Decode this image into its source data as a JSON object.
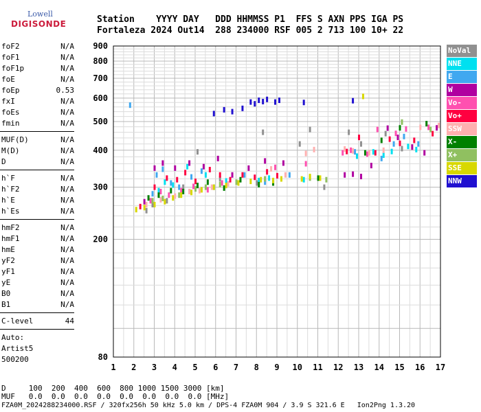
{
  "logo": {
    "top": "Lowell",
    "bottom": "DIGISONDE"
  },
  "header": {
    "row1": "Station    YYYY DAY   DDD HHMMSS P1  FFS S AXN PPS IGA PS",
    "row2": "Fortaleza 2024 Out14  288 234000 RSF 005 2 713 100 10+ 22"
  },
  "params": [
    {
      "name": "foF2",
      "value": "N/A"
    },
    {
      "name": "foF1",
      "value": "N/A"
    },
    {
      "name": "foF1p",
      "value": "N/A"
    },
    {
      "name": "foE",
      "value": "N/A"
    },
    {
      "name": "foEp",
      "value": "0.53"
    },
    {
      "name": "fxI",
      "value": "N/A"
    },
    {
      "name": "foEs",
      "value": "N/A"
    },
    {
      "name": "fmin",
      "value": "N/A"
    },
    {
      "name": "MUF(D)",
      "value": "N/A"
    },
    {
      "name": "M(D)",
      "value": "N/A"
    },
    {
      "name": "D",
      "value": "N/A"
    },
    {
      "name": "h`F",
      "value": "N/A"
    },
    {
      "name": "h`F2",
      "value": "N/A"
    },
    {
      "name": "h`E",
      "value": "N/A"
    },
    {
      "name": "h`Es",
      "value": "N/A"
    },
    {
      "name": "hmF2",
      "value": "N/A"
    },
    {
      "name": "hmF1",
      "value": "N/A"
    },
    {
      "name": "hmE",
      "value": "N/A"
    },
    {
      "name": "yF2",
      "value": "N/A"
    },
    {
      "name": "yF1",
      "value": "N/A"
    },
    {
      "name": "yE",
      "value": "N/A"
    },
    {
      "name": "B0",
      "value": "N/A"
    },
    {
      "name": "B1",
      "value": "N/A"
    },
    {
      "name": "C-level",
      "value": "44"
    }
  ],
  "auto": {
    "line1": "Auto:",
    "line2": "Artist5",
    "line3": "500200"
  },
  "legend": [
    {
      "label": "NoVal",
      "color": "#909090"
    },
    {
      "label": "NNE",
      "color": "#00e0f0"
    },
    {
      "label": "E",
      "color": "#40a8f0"
    },
    {
      "label": "W",
      "color": "#b000a0"
    },
    {
      "label": "Vo-",
      "color": "#ff50b0"
    },
    {
      "label": "Vo+",
      "color": "#ff0040"
    },
    {
      "label": "SSW",
      "color": "#ffb0b0"
    },
    {
      "label": "X-",
      "color": "#008000"
    },
    {
      "label": "X+",
      "color": "#90c060"
    },
    {
      "label": "SSE",
      "color": "#d8d800"
    },
    {
      "label": "NNW",
      "color": "#2010d0"
    }
  ],
  "footer": {
    "d_row": "D     100  200  400  600  800 1000 1500 3000 [km]",
    "muf_row": "MUF   0.0  0.0  0.0  0.0  0.0  0.0  0.0  0.0 [MHz]",
    "info_row": "FZA0M_2024288234000.RSF / 320fx256h 50 kHz 5.0 km / DPS-4 FZA0M 904 / 3.9 S 321.6 E   Ion2Png 1.3.20"
  },
  "chart_data": {
    "type": "scatter",
    "xlim": [
      1,
      17
    ],
    "ylim": [
      80,
      900
    ],
    "yscale": "log",
    "x_ticks": [
      1,
      2,
      3,
      4,
      5,
      6,
      7,
      8,
      9,
      10,
      11,
      12,
      13,
      14,
      15,
      16,
      17
    ],
    "y_ticks": [
      80,
      200,
      300,
      400,
      500,
      600,
      700,
      800,
      900
    ],
    "grid": true,
    "series": [
      {
        "name": "NoVal",
        "points": [
          [
            2.6,
            250
          ],
          [
            2.9,
            262
          ],
          [
            3.6,
            270
          ],
          [
            4.4,
            300
          ],
          [
            5.1,
            395
          ],
          [
            6.2,
            320
          ],
          [
            8.0,
            310
          ],
          [
            8.3,
            460
          ],
          [
            10.1,
            420
          ],
          [
            10.6,
            470
          ],
          [
            11.3,
            300
          ],
          [
            12.5,
            460
          ],
          [
            13.1,
            420
          ],
          [
            14.3,
            455
          ],
          [
            15.1,
            405
          ]
        ]
      },
      {
        "name": "NNE",
        "points": [
          [
            3.2,
            292
          ],
          [
            3.5,
            312
          ],
          [
            3.9,
            305
          ],
          [
            4.6,
            352
          ],
          [
            5.5,
            330
          ],
          [
            6.5,
            315
          ],
          [
            8.1,
            316
          ],
          [
            8.6,
            322
          ],
          [
            10.3,
            318
          ],
          [
            12.9,
            382
          ],
          [
            13.7,
            395
          ],
          [
            14.2,
            385
          ],
          [
            14.6,
            396
          ],
          [
            15.4,
            412
          ],
          [
            15.8,
            402
          ]
        ]
      },
      {
        "name": "E",
        "points": [
          [
            1.8,
            568
          ],
          [
            2.9,
            285
          ],
          [
            3.1,
            330
          ],
          [
            3.4,
            345
          ],
          [
            3.8,
            310
          ],
          [
            4.2,
            300
          ],
          [
            4.8,
            325
          ],
          [
            5.3,
            340
          ],
          [
            5.9,
            300
          ],
          [
            7.4,
            330
          ],
          [
            8.4,
            312
          ],
          [
            9.6,
            330
          ],
          [
            12.8,
            395
          ],
          [
            14.1,
            375
          ],
          [
            14.7,
            420
          ],
          [
            15.2,
            445
          ],
          [
            15.9,
            420
          ]
        ]
      },
      {
        "name": "W",
        "points": [
          [
            2.5,
            268
          ],
          [
            3.0,
            348
          ],
          [
            3.4,
            362
          ],
          [
            4.0,
            348
          ],
          [
            4.7,
            362
          ],
          [
            5.4,
            352
          ],
          [
            6.1,
            375
          ],
          [
            6.8,
            330
          ],
          [
            7.6,
            348
          ],
          [
            8.4,
            368
          ],
          [
            9.3,
            362
          ],
          [
            12.3,
            330
          ],
          [
            12.7,
            332
          ],
          [
            13.1,
            326
          ],
          [
            13.6,
            355
          ],
          [
            14.4,
            475
          ],
          [
            14.9,
            442
          ],
          [
            15.6,
            410
          ],
          [
            16.2,
            392
          ],
          [
            16.8,
            476
          ]
        ]
      },
      {
        "name": "Vo-",
        "points": [
          [
            2.8,
            270
          ],
          [
            3.3,
            290
          ],
          [
            3.7,
            282
          ],
          [
            4.3,
            292
          ],
          [
            4.9,
            302
          ],
          [
            5.6,
            294
          ],
          [
            6.3,
            310
          ],
          [
            8.9,
            350
          ],
          [
            10.4,
            360
          ],
          [
            12.2,
            392
          ],
          [
            12.6,
            400
          ],
          [
            13.4,
            388
          ],
          [
            13.9,
            470
          ],
          [
            14.8,
            456
          ],
          [
            15.3,
            472
          ],
          [
            16.4,
            478
          ]
        ]
      },
      {
        "name": "Vo+",
        "points": [
          [
            2.3,
            258
          ],
          [
            3.0,
            300
          ],
          [
            3.6,
            322
          ],
          [
            4.1,
            318
          ],
          [
            4.5,
            336
          ],
          [
            5.0,
            314
          ],
          [
            5.7,
            344
          ],
          [
            6.2,
            330
          ],
          [
            6.7,
            318
          ],
          [
            7.3,
            330
          ],
          [
            7.9,
            324
          ],
          [
            8.5,
            338
          ],
          [
            9.0,
            328
          ],
          [
            12.4,
            396
          ],
          [
            13.0,
            442
          ],
          [
            13.8,
            392
          ],
          [
            14.5,
            436
          ],
          [
            15.0,
            422
          ],
          [
            15.7,
            432
          ],
          [
            16.6,
            455
          ]
        ]
      },
      {
        "name": "SSW",
        "points": [
          [
            2.6,
            262
          ],
          [
            3.3,
            272
          ],
          [
            4.0,
            280
          ],
          [
            4.7,
            290
          ],
          [
            5.2,
            292
          ],
          [
            5.8,
            300
          ],
          [
            6.6,
            308
          ],
          [
            8.7,
            346
          ],
          [
            9.4,
            330
          ],
          [
            10.4,
            390
          ],
          [
            10.8,
            402
          ],
          [
            12.3,
            404
          ],
          [
            12.7,
            398
          ],
          [
            13.5,
            392
          ],
          [
            14.2,
            400
          ],
          [
            16.0,
            478
          ],
          [
            16.9,
            485
          ]
        ]
      },
      {
        "name": "X-",
        "points": [
          [
            2.7,
            276
          ],
          [
            3.2,
            282
          ],
          [
            3.8,
            292
          ],
          [
            4.4,
            290
          ],
          [
            5.1,
            304
          ],
          [
            5.6,
            312
          ],
          [
            6.4,
            298
          ],
          [
            7.2,
            318
          ],
          [
            8.1,
            306
          ],
          [
            8.8,
            310
          ],
          [
            11.0,
            322
          ],
          [
            13.3,
            392
          ],
          [
            14.1,
            432
          ],
          [
            15.0,
            476
          ],
          [
            16.3,
            492
          ]
        ]
      },
      {
        "name": "X+",
        "points": [
          [
            2.9,
            270
          ],
          [
            3.4,
            275
          ],
          [
            4.2,
            282
          ],
          [
            5.0,
            296
          ],
          [
            5.5,
            300
          ],
          [
            6.2,
            306
          ],
          [
            7.0,
            312
          ],
          [
            8.4,
            320
          ],
          [
            10.6,
            322
          ],
          [
            11.4,
            318
          ],
          [
            15.1,
            498
          ],
          [
            16.5,
            470
          ]
        ]
      },
      {
        "name": "SSE",
        "points": [
          [
            2.1,
            252
          ],
          [
            2.5,
            256
          ],
          [
            3.0,
            262
          ],
          [
            3.5,
            268
          ],
          [
            3.9,
            276
          ],
          [
            4.3,
            282
          ],
          [
            4.8,
            288
          ],
          [
            5.3,
            294
          ],
          [
            5.9,
            300
          ],
          [
            6.5,
            304
          ],
          [
            7.1,
            310
          ],
          [
            7.7,
            314
          ],
          [
            8.2,
            318
          ],
          [
            8.8,
            316
          ],
          [
            9.2,
            320
          ],
          [
            10.2,
            320
          ],
          [
            10.6,
            326
          ],
          [
            11.1,
            322
          ],
          [
            13.2,
            608
          ]
        ]
      },
      {
        "name": "NNW",
        "points": [
          [
            5.9,
            532
          ],
          [
            6.4,
            548
          ],
          [
            6.8,
            540
          ],
          [
            7.3,
            554
          ],
          [
            7.7,
            582
          ],
          [
            7.9,
            574
          ],
          [
            8.1,
            590
          ],
          [
            8.3,
            584
          ],
          [
            8.5,
            594
          ],
          [
            8.9,
            582
          ],
          [
            9.1,
            590
          ],
          [
            10.3,
            580
          ],
          [
            12.7,
            588
          ]
        ]
      }
    ]
  }
}
